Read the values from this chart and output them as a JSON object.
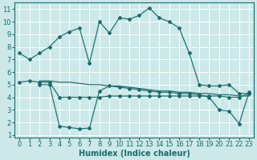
{
  "xlabel": "Humidex (Indice chaleur)",
  "bg_color": "#cce8e8",
  "grid_color": "#ffffff",
  "line_color": "#1a6b6b",
  "xlim": [
    -0.5,
    23.5
  ],
  "ylim": [
    0.8,
    11.5
  ],
  "yticks": [
    1,
    2,
    3,
    4,
    5,
    6,
    7,
    8,
    9,
    10,
    11
  ],
  "xticks": [
    0,
    1,
    2,
    3,
    4,
    5,
    6,
    7,
    8,
    9,
    10,
    11,
    12,
    13,
    14,
    15,
    16,
    17,
    18,
    19,
    20,
    21,
    22,
    23
  ],
  "series1_x": [
    0,
    1,
    2,
    3,
    4,
    5,
    6,
    7,
    8,
    9,
    10,
    11,
    12,
    13,
    14,
    15,
    16,
    17,
    18,
    19,
    20,
    21,
    22,
    23
  ],
  "series1_y": [
    7.5,
    7.0,
    7.5,
    8.0,
    8.8,
    9.2,
    9.5,
    6.7,
    10.0,
    9.1,
    10.3,
    10.2,
    10.5,
    11.1,
    10.3,
    10.0,
    9.5,
    7.5,
    5.0,
    4.9,
    4.9,
    5.0,
    4.3,
    4.3
  ],
  "series2_x": [
    2,
    3,
    4,
    5,
    6,
    7,
    8,
    9,
    10,
    11,
    12,
    13,
    14,
    15,
    16,
    17,
    18,
    19,
    20,
    21,
    22,
    23
  ],
  "series2_y": [
    5.3,
    5.3,
    5.2,
    5.2,
    5.1,
    5.0,
    5.0,
    4.9,
    4.9,
    4.8,
    4.7,
    4.6,
    4.5,
    4.5,
    4.4,
    4.4,
    4.3,
    4.3,
    4.2,
    4.2,
    4.1,
    4.1
  ],
  "series3_x": [
    0,
    1,
    2,
    3,
    4,
    5,
    6,
    7,
    8,
    9,
    10,
    11,
    12,
    13,
    14,
    15,
    16,
    17,
    18,
    19,
    20,
    21,
    22,
    23
  ],
  "series3_y": [
    5.2,
    5.3,
    5.2,
    5.2,
    4.0,
    4.0,
    4.0,
    4.0,
    4.0,
    4.1,
    4.1,
    4.1,
    4.1,
    4.1,
    4.1,
    4.1,
    4.1,
    4.1,
    4.1,
    4.1,
    4.1,
    4.0,
    4.0,
    4.3
  ],
  "series4_x": [
    2,
    3,
    4,
    5,
    6,
    7,
    8,
    9,
    10,
    11,
    12,
    13,
    14,
    15,
    16,
    17,
    18,
    19,
    20,
    21,
    22,
    23
  ],
  "series4_y": [
    5.0,
    5.0,
    1.7,
    1.6,
    1.5,
    1.55,
    4.5,
    4.9,
    4.8,
    4.7,
    4.6,
    4.5,
    4.4,
    4.4,
    4.3,
    4.3,
    4.2,
    4.0,
    3.0,
    2.9,
    1.9,
    4.4
  ],
  "xlabel_fontsize": 7,
  "tick_fontsize": 6
}
